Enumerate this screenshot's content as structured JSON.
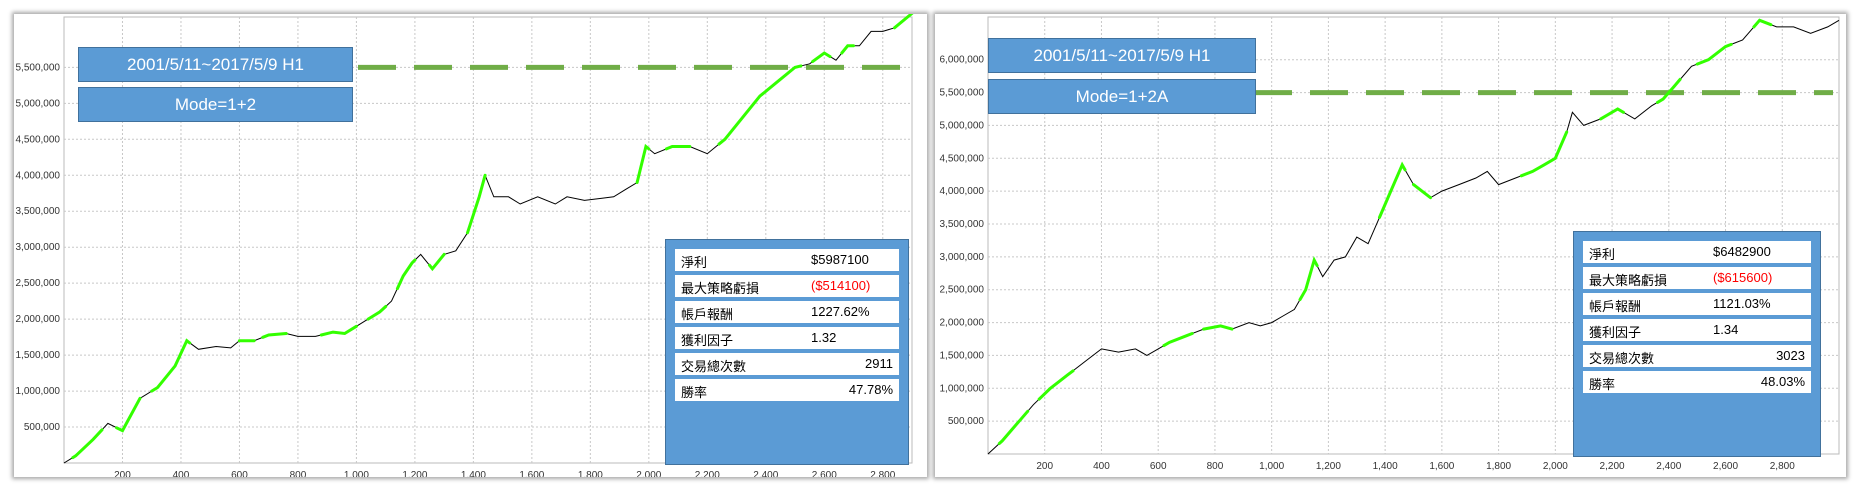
{
  "chart_data": [
    {
      "type": "line",
      "x_ticks": [
        200,
        400,
        600,
        800,
        "1,000",
        "1,200",
        "1,400",
        "1,600",
        "1,800",
        "2,000",
        "2,200",
        "2,400",
        "2,600",
        "2,800"
      ],
      "y_ticks": [
        "500,000",
        "1,000,000",
        "1,500,000",
        "2,000,000",
        "2,500,000",
        "3,000,000",
        "3,500,000",
        "4,000,000",
        "4,500,000",
        "5,000,000",
        "5,500,000"
      ],
      "xlim": [
        0,
        2900
      ],
      "ylim": [
        0,
        6200000
      ],
      "grid": true,
      "dashed_line_value": 5500000,
      "series": [
        {
          "color": "#000000",
          "highlight_color": "#33ff00",
          "points": [
            [
              0,
              0
            ],
            [
              40,
              100000
            ],
            [
              100,
              330000
            ],
            [
              150,
              550000
            ],
            [
              200,
              450000
            ],
            [
              260,
              900000
            ],
            [
              320,
              1050000
            ],
            [
              380,
              1350000
            ],
            [
              420,
              1700000
            ],
            [
              460,
              1580000
            ],
            [
              520,
              1620000
            ],
            [
              570,
              1600000
            ],
            [
              600,
              1700000
            ],
            [
              650,
              1700000
            ],
            [
              700,
              1780000
            ],
            [
              760,
              1800000
            ],
            [
              800,
              1760000
            ],
            [
              860,
              1760000
            ],
            [
              920,
              1820000
            ],
            [
              960,
              1800000
            ],
            [
              1000,
              1900000
            ],
            [
              1040,
              2000000
            ],
            [
              1080,
              2100000
            ],
            [
              1120,
              2250000
            ],
            [
              1160,
              2600000
            ],
            [
              1190,
              2780000
            ],
            [
              1220,
              2900000
            ],
            [
              1260,
              2700000
            ],
            [
              1300,
              2900000
            ],
            [
              1340,
              2950000
            ],
            [
              1380,
              3200000
            ],
            [
              1420,
              3700000
            ],
            [
              1440,
              4000000
            ],
            [
              1470,
              3700000
            ],
            [
              1520,
              3700000
            ],
            [
              1560,
              3600000
            ],
            [
              1620,
              3700000
            ],
            [
              1680,
              3600000
            ],
            [
              1720,
              3700000
            ],
            [
              1780,
              3650000
            ],
            [
              1840,
              3680000
            ],
            [
              1880,
              3700000
            ],
            [
              1920,
              3800000
            ],
            [
              1960,
              3900000
            ],
            [
              1990,
              4400000
            ],
            [
              2020,
              4300000
            ],
            [
              2080,
              4400000
            ],
            [
              2140,
              4400000
            ],
            [
              2200,
              4300000
            ],
            [
              2260,
              4500000
            ],
            [
              2320,
              4800000
            ],
            [
              2380,
              5100000
            ],
            [
              2440,
              5300000
            ],
            [
              2500,
              5500000
            ],
            [
              2550,
              5550000
            ],
            [
              2600,
              5700000
            ],
            [
              2640,
              5600000
            ],
            [
              2680,
              5800000
            ],
            [
              2720,
              5800000
            ],
            [
              2760,
              6000000
            ],
            [
              2800,
              6000000
            ],
            [
              2840,
              6050000
            ],
            [
              2900,
              6250000
            ]
          ],
          "highlight_ranges": [
            [
              30,
              130
            ],
            [
              180,
              260
            ],
            [
              300,
              430
            ],
            [
              600,
              650
            ],
            [
              680,
              760
            ],
            [
              880,
              1000
            ],
            [
              1040,
              1100
            ],
            [
              1140,
              1200
            ],
            [
              1250,
              1300
            ],
            [
              1380,
              1440
            ],
            [
              1960,
              2000
            ],
            [
              2060,
              2140
            ],
            [
              2240,
              2520
            ],
            [
              2560,
              2620
            ],
            [
              2660,
              2700
            ],
            [
              2840,
              2900
            ]
          ]
        }
      ],
      "tags": [
        "2001/5/11~2017/5/9 H1",
        "Mode=1+2"
      ],
      "stats": [
        {
          "label": "淨利",
          "value": "$5987100",
          "negative": false,
          "align": "mid"
        },
        {
          "label": "最大策略虧損",
          "value": "($514100)",
          "negative": true,
          "align": "mid"
        },
        {
          "label": "帳戶報酬",
          "value": "1227.62%",
          "negative": false,
          "align": "mid"
        },
        {
          "label": "獲利因子",
          "value": "1.32",
          "negative": false,
          "align": "mid"
        },
        {
          "label": "交易總次數",
          "value": "2911",
          "negative": false,
          "align": "right"
        },
        {
          "label": "勝率",
          "value": "47.78%",
          "negative": false,
          "align": "right"
        }
      ]
    },
    {
      "type": "line",
      "x_ticks": [
        200,
        400,
        600,
        800,
        "1,000",
        "1,200",
        "1,400",
        "1,600",
        "1,800",
        "2,000",
        "2,200",
        "2,400",
        "2,600",
        "2,800"
      ],
      "y_ticks": [
        "500,000",
        "1,000,000",
        "1,500,000",
        "2,000,000",
        "2,500,000",
        "3,000,000",
        "3,500,000",
        "4,000,000",
        "4,500,000",
        "5,000,000",
        "5,500,000",
        "6,000,000"
      ],
      "xlim": [
        0,
        3000
      ],
      "ylim": [
        0,
        6650000
      ],
      "grid": true,
      "dashed_line_value": 5500000,
      "series": [
        {
          "color": "#000000",
          "highlight_color": "#33ff00",
          "points": [
            [
              0,
              0
            ],
            [
              50,
              200000
            ],
            [
              100,
              450000
            ],
            [
              160,
              750000
            ],
            [
              220,
              1000000
            ],
            [
              280,
              1200000
            ],
            [
              340,
              1400000
            ],
            [
              400,
              1600000
            ],
            [
              460,
              1550000
            ],
            [
              520,
              1600000
            ],
            [
              560,
              1500000
            ],
            [
              600,
              1600000
            ],
            [
              640,
              1700000
            ],
            [
              700,
              1800000
            ],
            [
              760,
              1900000
            ],
            [
              820,
              1950000
            ],
            [
              860,
              1900000
            ],
            [
              920,
              2000000
            ],
            [
              960,
              1950000
            ],
            [
              1000,
              2000000
            ],
            [
              1040,
              2100000
            ],
            [
              1080,
              2200000
            ],
            [
              1120,
              2500000
            ],
            [
              1150,
              2950000
            ],
            [
              1180,
              2700000
            ],
            [
              1220,
              2950000
            ],
            [
              1260,
              3000000
            ],
            [
              1300,
              3300000
            ],
            [
              1340,
              3200000
            ],
            [
              1380,
              3600000
            ],
            [
              1420,
              4000000
            ],
            [
              1460,
              4400000
            ],
            [
              1500,
              4100000
            ],
            [
              1560,
              3900000
            ],
            [
              1600,
              4000000
            ],
            [
              1660,
              4100000
            ],
            [
              1720,
              4200000
            ],
            [
              1760,
              4300000
            ],
            [
              1800,
              4100000
            ],
            [
              1860,
              4200000
            ],
            [
              1920,
              4300000
            ],
            [
              1960,
              4400000
            ],
            [
              2000,
              4500000
            ],
            [
              2040,
              4900000
            ],
            [
              2060,
              5200000
            ],
            [
              2100,
              5000000
            ],
            [
              2160,
              5100000
            ],
            [
              2220,
              5250000
            ],
            [
              2280,
              5100000
            ],
            [
              2340,
              5300000
            ],
            [
              2380,
              5400000
            ],
            [
              2420,
              5600000
            ],
            [
              2480,
              5900000
            ],
            [
              2540,
              6000000
            ],
            [
              2600,
              6200000
            ],
            [
              2660,
              6300000
            ],
            [
              2720,
              6600000
            ],
            [
              2780,
              6500000
            ],
            [
              2840,
              6500000
            ],
            [
              2900,
              6400000
            ],
            [
              2960,
              6500000
            ],
            [
              3000,
              6600000
            ]
          ],
          "highlight_ranges": [
            [
              40,
              140
            ],
            [
              180,
              300
            ],
            [
              620,
              720
            ],
            [
              760,
              860
            ],
            [
              1100,
              1160
            ],
            [
              1380,
              1470
            ],
            [
              1500,
              1560
            ],
            [
              1880,
              2040
            ],
            [
              2160,
              2240
            ],
            [
              2360,
              2440
            ],
            [
              2500,
              2620
            ],
            [
              2700,
              2760
            ]
          ]
        }
      ],
      "tags": [
        "2001/5/11~2017/5/9 H1",
        "Mode=1+2A"
      ],
      "stats": [
        {
          "label": "淨利",
          "value": "$6482900",
          "negative": false,
          "align": "mid"
        },
        {
          "label": "最大策略虧損",
          "value": "($615600)",
          "negative": true,
          "align": "mid"
        },
        {
          "label": "帳戶報酬",
          "value": "1121.03%",
          "negative": false,
          "align": "mid"
        },
        {
          "label": "獲利因子",
          "value": "1.34",
          "negative": false,
          "align": "mid"
        },
        {
          "label": "交易總次數",
          "value": "3023",
          "negative": false,
          "align": "right"
        },
        {
          "label": "勝率",
          "value": "48.03%",
          "negative": false,
          "align": "right"
        }
      ]
    }
  ]
}
